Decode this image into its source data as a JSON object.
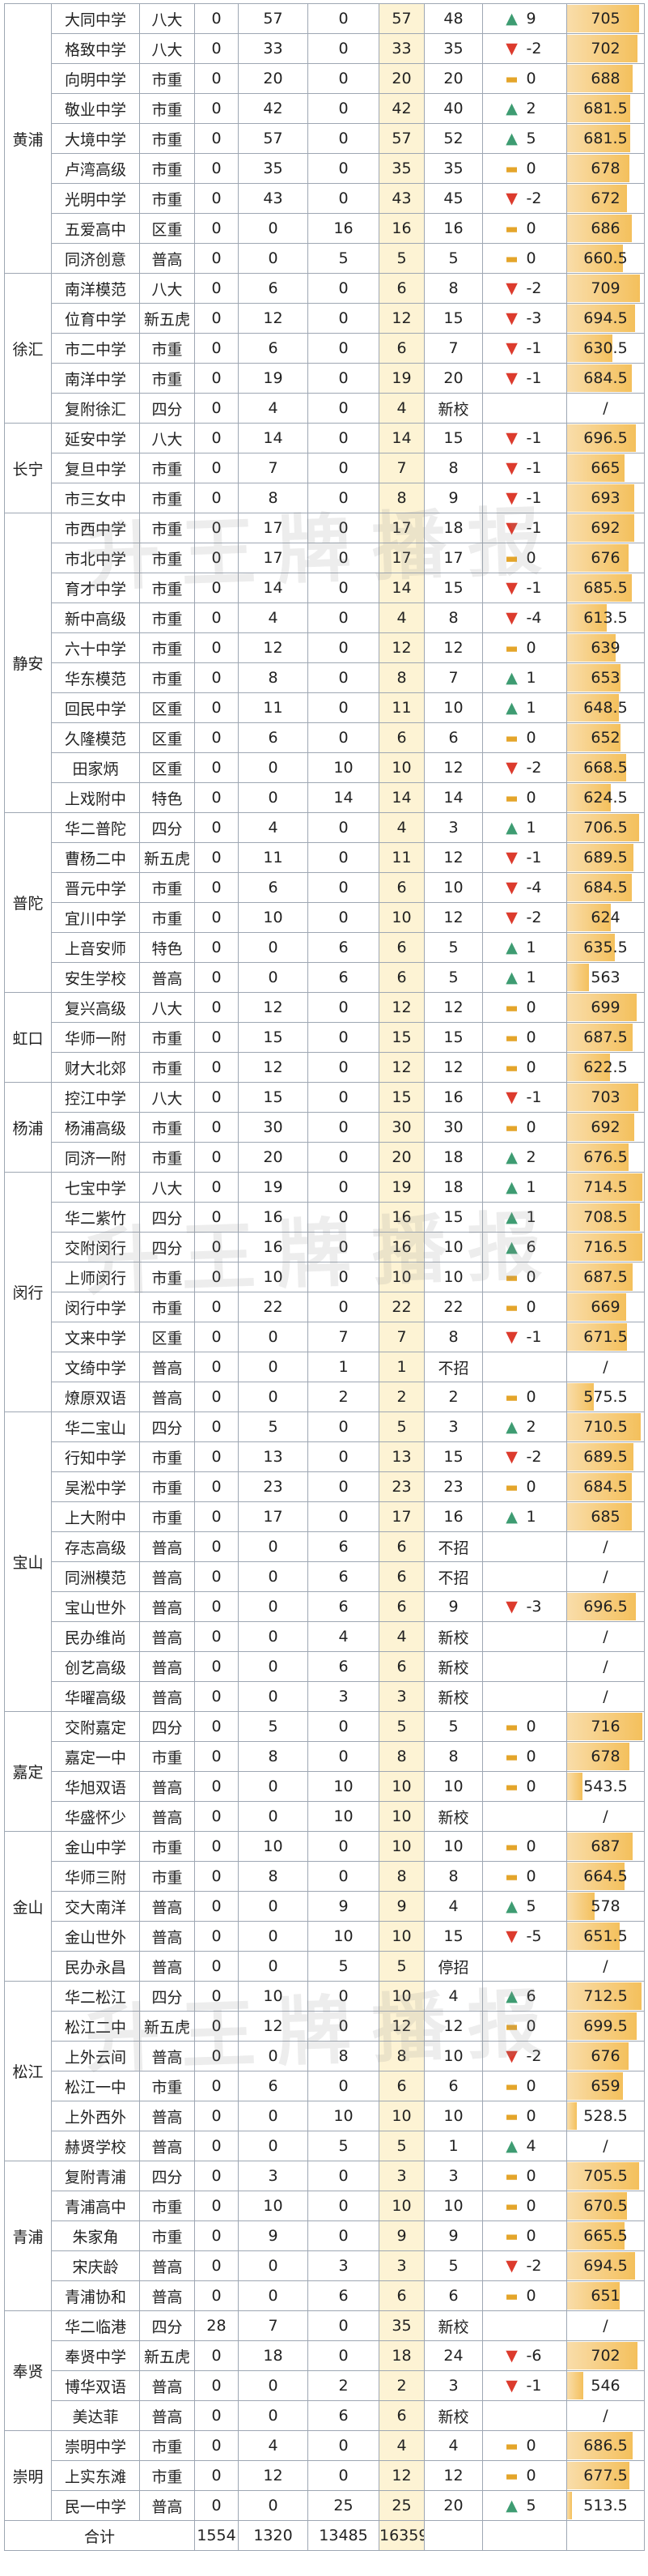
{
  "watermark": "升王牌播报",
  "score_scale": [
    500,
    720
  ],
  "colors": {
    "up": "#3e9c72",
    "down": "#dc3b2d",
    "flat": "#e4a52a",
    "subtotal_bg": "#fdf3d4",
    "score_bar": "#f4c05c"
  },
  "groups": [
    {
      "district": "黄浦",
      "rows": [
        [
          "大同中学",
          "八大",
          "0",
          "57",
          "0",
          "57",
          "48",
          "up",
          "9",
          "705",
          705
        ],
        [
          "格致中学",
          "八大",
          "0",
          "33",
          "0",
          "33",
          "35",
          "down",
          "-2",
          "702",
          702
        ],
        [
          "向明中学",
          "市重",
          "0",
          "20",
          "0",
          "20",
          "20",
          "flat",
          "0",
          "688",
          688
        ],
        [
          "敬业中学",
          "市重",
          "0",
          "42",
          "0",
          "42",
          "40",
          "up",
          "2",
          "681.5",
          681.5
        ],
        [
          "大境中学",
          "市重",
          "0",
          "57",
          "0",
          "57",
          "52",
          "up",
          "5",
          "681.5",
          681.5
        ],
        [
          "卢湾高级",
          "市重",
          "0",
          "35",
          "0",
          "35",
          "35",
          "flat",
          "0",
          "678",
          678
        ],
        [
          "光明中学",
          "市重",
          "0",
          "43",
          "0",
          "43",
          "45",
          "down",
          "-2",
          "672",
          672
        ],
        [
          "五爱高中",
          "区重",
          "0",
          "0",
          "16",
          "16",
          "16",
          "flat",
          "0",
          "686",
          686
        ],
        [
          "同济创意",
          "普高",
          "0",
          "0",
          "5",
          "5",
          "5",
          "flat",
          "0",
          "660.5",
          660.5
        ]
      ]
    },
    {
      "district": "徐汇",
      "rows": [
        [
          "南洋模范",
          "八大",
          "0",
          "6",
          "0",
          "6",
          "8",
          "down",
          "-2",
          "709",
          709
        ],
        [
          "位育中学",
          "新五虎",
          "0",
          "12",
          "0",
          "12",
          "15",
          "down",
          "-3",
          "694.5",
          694.5
        ],
        [
          "市二中学",
          "市重",
          "0",
          "6",
          "0",
          "6",
          "7",
          "down",
          "-1",
          "630.5",
          630.5
        ],
        [
          "南洋中学",
          "市重",
          "0",
          "19",
          "0",
          "19",
          "20",
          "down",
          "-1",
          "684.5",
          684.5
        ],
        [
          "复附徐汇",
          "四分",
          "0",
          "4",
          "0",
          "4",
          "新校",
          "",
          "",
          "/",
          null
        ]
      ]
    },
    {
      "district": "长宁",
      "rows": [
        [
          "延安中学",
          "八大",
          "0",
          "14",
          "0",
          "14",
          "15",
          "down",
          "-1",
          "696.5",
          696.5
        ],
        [
          "复旦中学",
          "市重",
          "0",
          "7",
          "0",
          "7",
          "8",
          "down",
          "-1",
          "665",
          665
        ],
        [
          "市三女中",
          "市重",
          "0",
          "8",
          "0",
          "8",
          "9",
          "down",
          "-1",
          "693",
          693
        ]
      ]
    },
    {
      "district": "静安",
      "rows": [
        [
          "市西中学",
          "市重",
          "0",
          "17",
          "0",
          "17",
          "18",
          "down",
          "-1",
          "692",
          692
        ],
        [
          "市北中学",
          "市重",
          "0",
          "17",
          "0",
          "17",
          "17",
          "flat",
          "0",
          "676",
          676
        ],
        [
          "育才中学",
          "市重",
          "0",
          "14",
          "0",
          "14",
          "15",
          "down",
          "-1",
          "685.5",
          685.5
        ],
        [
          "新中高级",
          "市重",
          "0",
          "4",
          "0",
          "4",
          "8",
          "down",
          "-4",
          "613.5",
          613.5
        ],
        [
          "六十中学",
          "市重",
          "0",
          "12",
          "0",
          "12",
          "12",
          "flat",
          "0",
          "639",
          639
        ],
        [
          "华东模范",
          "市重",
          "0",
          "8",
          "0",
          "8",
          "7",
          "up",
          "1",
          "653",
          653
        ],
        [
          "回民中学",
          "区重",
          "0",
          "11",
          "0",
          "11",
          "10",
          "up",
          "1",
          "648.5",
          648.5
        ],
        [
          "久隆模范",
          "区重",
          "0",
          "6",
          "0",
          "6",
          "6",
          "flat",
          "0",
          "652",
          652
        ],
        [
          "田家炳",
          "区重",
          "0",
          "0",
          "10",
          "10",
          "12",
          "down",
          "-2",
          "668.5",
          668.5
        ],
        [
          "上戏附中",
          "特色",
          "0",
          "0",
          "14",
          "14",
          "14",
          "flat",
          "0",
          "624.5",
          624.5
        ]
      ]
    },
    {
      "district": "普陀",
      "rows": [
        [
          "华二普陀",
          "四分",
          "0",
          "4",
          "0",
          "4",
          "3",
          "up",
          "1",
          "706.5",
          706.5
        ],
        [
          "曹杨二中",
          "新五虎",
          "0",
          "11",
          "0",
          "11",
          "12",
          "down",
          "-1",
          "689.5",
          689.5
        ],
        [
          "晋元中学",
          "市重",
          "0",
          "6",
          "0",
          "6",
          "10",
          "down",
          "-4",
          "684.5",
          684.5
        ],
        [
          "宜川中学",
          "市重",
          "0",
          "10",
          "0",
          "10",
          "12",
          "down",
          "-2",
          "624",
          624
        ],
        [
          "上音安师",
          "特色",
          "0",
          "0",
          "6",
          "6",
          "5",
          "up",
          "1",
          "635.5",
          635.5
        ],
        [
          "安生学校",
          "普高",
          "0",
          "0",
          "6",
          "6",
          "5",
          "up",
          "1",
          "563",
          563
        ]
      ]
    },
    {
      "district": "虹口",
      "rows": [
        [
          "复兴高级",
          "八大",
          "0",
          "12",
          "0",
          "12",
          "12",
          "flat",
          "0",
          "699",
          699
        ],
        [
          "华师一附",
          "市重",
          "0",
          "15",
          "0",
          "15",
          "15",
          "flat",
          "0",
          "687.5",
          687.5
        ],
        [
          "财大北郊",
          "市重",
          "0",
          "12",
          "0",
          "12",
          "12",
          "flat",
          "0",
          "622.5",
          622.5
        ]
      ]
    },
    {
      "district": "杨浦",
      "rows": [
        [
          "控江中学",
          "八大",
          "0",
          "15",
          "0",
          "15",
          "16",
          "down",
          "-1",
          "703",
          703
        ],
        [
          "杨浦高级",
          "市重",
          "0",
          "30",
          "0",
          "30",
          "30",
          "flat",
          "0",
          "692",
          692
        ],
        [
          "同济一附",
          "市重",
          "0",
          "20",
          "0",
          "20",
          "18",
          "up",
          "2",
          "676.5",
          676.5
        ]
      ]
    },
    {
      "district": "闵行",
      "rows": [
        [
          "七宝中学",
          "八大",
          "0",
          "19",
          "0",
          "19",
          "18",
          "up",
          "1",
          "714.5",
          714.5
        ],
        [
          "华二紫竹",
          "四分",
          "0",
          "16",
          "0",
          "16",
          "15",
          "up",
          "1",
          "708.5",
          708.5
        ],
        [
          "交附闵行",
          "四分",
          "0",
          "16",
          "0",
          "16",
          "10",
          "up",
          "6",
          "716.5",
          716.5
        ],
        [
          "上师闵行",
          "市重",
          "0",
          "10",
          "0",
          "10",
          "10",
          "flat",
          "0",
          "687.5",
          687.5
        ],
        [
          "闵行中学",
          "市重",
          "0",
          "22",
          "0",
          "22",
          "22",
          "flat",
          "0",
          "669",
          669
        ],
        [
          "文来中学",
          "区重",
          "0",
          "0",
          "7",
          "7",
          "8",
          "down",
          "-1",
          "671.5",
          671.5
        ],
        [
          "文绮中学",
          "普高",
          "0",
          "0",
          "1",
          "1",
          "不招",
          "",
          "",
          "/",
          null
        ],
        [
          "燎原双语",
          "普高",
          "0",
          "0",
          "2",
          "2",
          "2",
          "flat",
          "0",
          "575.5",
          575.5
        ]
      ]
    },
    {
      "district": "宝山",
      "rows": [
        [
          "华二宝山",
          "四分",
          "0",
          "5",
          "0",
          "5",
          "3",
          "up",
          "2",
          "710.5",
          710.5
        ],
        [
          "行知中学",
          "市重",
          "0",
          "13",
          "0",
          "13",
          "15",
          "down",
          "-2",
          "689.5",
          689.5
        ],
        [
          "吴淞中学",
          "市重",
          "0",
          "23",
          "0",
          "23",
          "23",
          "flat",
          "0",
          "684.5",
          684.5
        ],
        [
          "上大附中",
          "市重",
          "0",
          "17",
          "0",
          "17",
          "16",
          "up",
          "1",
          "685",
          685
        ],
        [
          "存志高级",
          "普高",
          "0",
          "0",
          "6",
          "6",
          "不招",
          "",
          "",
          "/",
          null
        ],
        [
          "同洲模范",
          "普高",
          "0",
          "0",
          "6",
          "6",
          "不招",
          "",
          "",
          "/",
          null
        ],
        [
          "宝山世外",
          "普高",
          "0",
          "0",
          "6",
          "6",
          "9",
          "down",
          "-3",
          "696.5",
          696.5
        ],
        [
          "民办维尚",
          "普高",
          "0",
          "0",
          "4",
          "4",
          "新校",
          "",
          "",
          "/",
          null
        ],
        [
          "创艺高级",
          "普高",
          "0",
          "0",
          "6",
          "6",
          "新校",
          "",
          "",
          "/",
          null
        ],
        [
          "华曜高级",
          "普高",
          "0",
          "0",
          "3",
          "3",
          "新校",
          "",
          "",
          "/",
          null
        ]
      ]
    },
    {
      "district": "嘉定",
      "rows": [
        [
          "交附嘉定",
          "四分",
          "0",
          "5",
          "0",
          "5",
          "5",
          "flat",
          "0",
          "716",
          716
        ],
        [
          "嘉定一中",
          "市重",
          "0",
          "8",
          "0",
          "8",
          "8",
          "flat",
          "0",
          "678",
          678
        ],
        [
          "华旭双语",
          "普高",
          "0",
          "0",
          "10",
          "10",
          "10",
          "flat",
          "0",
          "543.5",
          543.5
        ],
        [
          "华盛怀少",
          "普高",
          "0",
          "0",
          "10",
          "10",
          "新校",
          "",
          "",
          "/",
          null
        ]
      ]
    },
    {
      "district": "金山",
      "rows": [
        [
          "金山中学",
          "市重",
          "0",
          "10",
          "0",
          "10",
          "10",
          "flat",
          "0",
          "687",
          687
        ],
        [
          "华师三附",
          "市重",
          "0",
          "8",
          "0",
          "8",
          "8",
          "flat",
          "0",
          "664.5",
          664.5
        ],
        [
          "交大南洋",
          "普高",
          "0",
          "0",
          "9",
          "9",
          "4",
          "up",
          "5",
          "578",
          578
        ],
        [
          "金山世外",
          "普高",
          "0",
          "0",
          "10",
          "10",
          "15",
          "down",
          "-5",
          "651.5",
          651.5
        ],
        [
          "民办永昌",
          "普高",
          "0",
          "0",
          "5",
          "5",
          "停招",
          "",
          "",
          "/",
          null
        ]
      ]
    },
    {
      "district": "松江",
      "rows": [
        [
          "华二松江",
          "四分",
          "0",
          "10",
          "0",
          "10",
          "4",
          "up",
          "6",
          "712.5",
          712.5
        ],
        [
          "松江二中",
          "新五虎",
          "0",
          "12",
          "0",
          "12",
          "12",
          "flat",
          "0",
          "699.5",
          699.5
        ],
        [
          "上外云间",
          "普高",
          "0",
          "0",
          "8",
          "8",
          "10",
          "down",
          "-2",
          "676",
          676
        ],
        [
          "松江一中",
          "市重",
          "0",
          "6",
          "0",
          "6",
          "6",
          "flat",
          "0",
          "659",
          659
        ],
        [
          "上外西外",
          "普高",
          "0",
          "0",
          "10",
          "10",
          "10",
          "flat",
          "0",
          "528.5",
          528.5
        ],
        [
          "赫贤学校",
          "普高",
          "0",
          "0",
          "5",
          "5",
          "1",
          "up",
          "4",
          "/",
          null
        ]
      ]
    },
    {
      "district": "青浦",
      "rows": [
        [
          "复附青浦",
          "四分",
          "0",
          "3",
          "0",
          "3",
          "3",
          "flat",
          "0",
          "705.5",
          705.5
        ],
        [
          "青浦高中",
          "市重",
          "0",
          "10",
          "0",
          "10",
          "10",
          "flat",
          "0",
          "670.5",
          670.5
        ],
        [
          "朱家角",
          "市重",
          "0",
          "9",
          "0",
          "9",
          "9",
          "flat",
          "0",
          "665.5",
          665.5
        ],
        [
          "宋庆龄",
          "普高",
          "0",
          "0",
          "3",
          "3",
          "5",
          "down",
          "-2",
          "694.5",
          694.5
        ],
        [
          "青浦协和",
          "普高",
          "0",
          "0",
          "6",
          "6",
          "6",
          "flat",
          "0",
          "651",
          651
        ]
      ]
    },
    {
      "district": "奉贤",
      "rows": [
        [
          "华二临港",
          "四分",
          "28",
          "7",
          "0",
          "35",
          "新校",
          "",
          "",
          "/",
          null
        ],
        [
          "奉贤中学",
          "新五虎",
          "0",
          "18",
          "0",
          "18",
          "24",
          "down",
          "-6",
          "702",
          702
        ],
        [
          "博华双语",
          "普高",
          "0",
          "0",
          "2",
          "2",
          "3",
          "down",
          "-1",
          "546",
          546
        ],
        [
          "美达菲",
          "普高",
          "0",
          "0",
          "6",
          "6",
          "新校",
          "",
          "",
          "/",
          null
        ]
      ]
    },
    {
      "district": "崇明",
      "rows": [
        [
          "崇明中学",
          "市重",
          "0",
          "4",
          "0",
          "4",
          "4",
          "flat",
          "0",
          "686.5",
          686.5
        ],
        [
          "上实东滩",
          "市重",
          "0",
          "12",
          "0",
          "12",
          "12",
          "flat",
          "0",
          "677.5",
          677.5
        ],
        [
          "民一中学",
          "普高",
          "0",
          "0",
          "25",
          "25",
          "20",
          "up",
          "5",
          "513.5",
          513.5
        ]
      ]
    }
  ],
  "total": {
    "label": "合计",
    "values": [
      "1554",
      "1320",
      "13485",
      "16359"
    ]
  }
}
